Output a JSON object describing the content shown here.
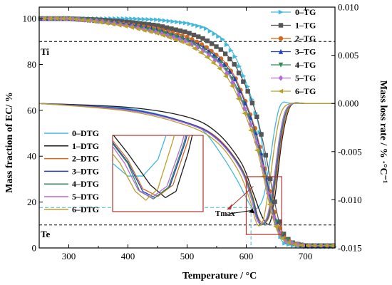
{
  "chart_data": {
    "type": "line",
    "xlabel": "Temperature / °C",
    "ylabel": "Mass fraction of EC/ %",
    "y2label": "Mass loss rate / % ·°C⁻¹",
    "xlim": [
      250,
      750
    ],
    "ylim": [
      0,
      105
    ],
    "y2lim": [
      -0.015,
      0.01
    ],
    "xticks": [
      300,
      400,
      500,
      600,
      700
    ],
    "yticks": [
      0,
      20,
      40,
      60,
      80,
      100
    ],
    "y2ticks": [
      -0.015,
      -0.01,
      -0.005,
      0.0,
      0.005,
      0.01
    ],
    "y2tick_labels": [
      "-0.015",
      "-0.010",
      "-0.005",
      "0.000",
      "0.005",
      "0.010"
    ],
    "grid": false,
    "legend_tg_position": "top-right",
    "legend_dtg_position": "left-center",
    "annotations": {
      "ti": "Ti",
      "te": "Te",
      "tmax": "Tmax",
      "ti_level": 90,
      "te_level": 10,
      "tmax_x": 608
    },
    "series_tg": [
      {
        "name": "0–TG",
        "color": "#42b8dd",
        "marker": "triangle-right",
        "x": [
          250,
          300,
          350,
          400,
          450,
          500,
          530,
          560,
          580,
          600,
          615,
          625,
          635,
          645,
          655,
          665,
          680,
          700,
          750
        ],
        "y": [
          100,
          100,
          100,
          100,
          99.5,
          98,
          96,
          91,
          84,
          72,
          60,
          48,
          33,
          18,
          6,
          2,
          1,
          0.5,
          0.5
        ]
      },
      {
        "name": "1–TG",
        "color": "#555555",
        "marker": "square",
        "x": [
          250,
          300,
          350,
          400,
          450,
          500,
          530,
          560,
          580,
          600,
          615,
          625,
          635,
          645,
          655,
          665,
          680,
          700,
          750
        ],
        "y": [
          100,
          100,
          99.5,
          98.5,
          97,
          94,
          91,
          86,
          80,
          70,
          60,
          50,
          38,
          24,
          12,
          5,
          2,
          1,
          1
        ]
      },
      {
        "name": "2–TG",
        "color": "#d2691e",
        "marker": "circle",
        "x": [
          250,
          300,
          350,
          400,
          450,
          500,
          530,
          560,
          580,
          600,
          615,
          625,
          635,
          645,
          655,
          665,
          680,
          700,
          750
        ],
        "y": [
          100,
          100,
          99,
          97.5,
          95.5,
          92,
          88,
          82,
          75,
          63,
          52,
          42,
          30,
          18,
          9,
          4,
          2,
          1,
          1
        ]
      },
      {
        "name": "3–TG",
        "color": "#1f3fbf",
        "marker": "triangle-up",
        "x": [
          250,
          300,
          350,
          400,
          450,
          500,
          530,
          560,
          580,
          600,
          615,
          625,
          635,
          645,
          655,
          665,
          680,
          700,
          750
        ],
        "y": [
          100,
          100,
          99,
          97.5,
          95,
          91,
          87,
          81,
          74,
          62,
          51,
          41,
          29,
          17,
          8,
          4,
          2,
          1,
          1
        ]
      },
      {
        "name": "4–TG",
        "color": "#2e8b57",
        "marker": "triangle-down",
        "x": [
          250,
          300,
          350,
          400,
          450,
          500,
          530,
          560,
          580,
          600,
          615,
          625,
          635,
          645,
          655,
          665,
          680,
          700,
          750
        ],
        "y": [
          100,
          100,
          99,
          97,
          94.5,
          90.5,
          86,
          80,
          72,
          60,
          49,
          39,
          27,
          16,
          8,
          4,
          2,
          1,
          1
        ]
      },
      {
        "name": "5–TG",
        "color": "#b36ad9",
        "marker": "diamond",
        "x": [
          250,
          300,
          350,
          400,
          450,
          500,
          530,
          560,
          580,
          600,
          615,
          625,
          635,
          645,
          655,
          665,
          680,
          700,
          750
        ],
        "y": [
          100,
          100,
          99,
          97,
          94,
          90,
          85.5,
          79,
          71,
          59,
          48,
          38,
          26,
          15,
          7,
          3,
          2,
          1,
          1
        ]
      },
      {
        "name": "6–TG",
        "color": "#b8a02a",
        "marker": "triangle-left",
        "x": [
          250,
          300,
          350,
          400,
          450,
          500,
          530,
          560,
          580,
          600,
          615,
          625,
          635,
          645,
          655,
          665,
          680,
          700,
          750
        ],
        "y": [
          100,
          100,
          98.5,
          96.5,
          93.5,
          89,
          84,
          77,
          69,
          57,
          46,
          36,
          24,
          13,
          6,
          3,
          1.5,
          1,
          1
        ]
      }
    ],
    "series_dtg": [
      {
        "name": "0–DTG",
        "color": "#42b8dd",
        "x": [
          250,
          400,
          500,
          530,
          560,
          585,
          600,
          610,
          620,
          630,
          640,
          650,
          660,
          680,
          750
        ],
        "y": [
          0.0,
          -0.0005,
          -0.002,
          -0.003,
          -0.0055,
          -0.008,
          -0.0098,
          -0.0108,
          -0.0108,
          -0.0095,
          -0.006,
          -0.002,
          0.0,
          0.0,
          0.0
        ]
      },
      {
        "name": "1–DTG",
        "color": "#1a1a1a",
        "x": [
          250,
          400,
          500,
          550,
          590,
          610,
          625,
          635,
          642,
          650,
          660,
          670,
          680,
          700,
          750
        ],
        "y": [
          0.0,
          -0.0004,
          -0.0014,
          -0.003,
          -0.006,
          -0.009,
          -0.0115,
          -0.0125,
          -0.012,
          -0.009,
          -0.004,
          -0.001,
          0.0,
          0.0,
          0.0
        ]
      },
      {
        "name": "2–DTG",
        "color": "#d2691e",
        "x": [
          250,
          400,
          500,
          550,
          590,
          610,
          620,
          630,
          640,
          650,
          660,
          670,
          680,
          700,
          750
        ],
        "y": [
          0.0,
          -0.0006,
          -0.002,
          -0.0035,
          -0.0065,
          -0.0095,
          -0.0118,
          -0.0124,
          -0.0115,
          -0.008,
          -0.0035,
          -0.0008,
          0.0,
          0.0,
          0.0
        ]
      },
      {
        "name": "3–DTG",
        "color": "#1f3fbf",
        "x": [
          250,
          400,
          500,
          550,
          590,
          610,
          620,
          628,
          638,
          648,
          658,
          668,
          680,
          700,
          750
        ],
        "y": [
          0.0,
          -0.0006,
          -0.002,
          -0.0036,
          -0.0066,
          -0.0097,
          -0.012,
          -0.0125,
          -0.0116,
          -0.0082,
          -0.0036,
          -0.0008,
          0.0,
          0.0,
          0.0
        ]
      },
      {
        "name": "4–DTG",
        "color": "#2e8b57",
        "x": [
          250,
          400,
          500,
          550,
          590,
          610,
          618,
          627,
          637,
          647,
          657,
          667,
          680,
          700,
          750
        ],
        "y": [
          0.0,
          -0.0007,
          -0.0021,
          -0.0037,
          -0.0067,
          -0.0098,
          -0.012,
          -0.0126,
          -0.0117,
          -0.0083,
          -0.0037,
          -0.0009,
          0.0,
          0.0,
          0.0
        ]
      },
      {
        "name": "5–DTG",
        "color": "#b36ad9",
        "x": [
          250,
          400,
          500,
          550,
          590,
          608,
          617,
          626,
          636,
          646,
          656,
          666,
          680,
          700,
          750
        ],
        "y": [
          0.0,
          -0.0007,
          -0.0021,
          -0.0037,
          -0.0068,
          -0.0098,
          -0.0119,
          -0.0125,
          -0.0116,
          -0.0082,
          -0.0036,
          -0.0008,
          0.0,
          0.0,
          0.0
        ]
      },
      {
        "name": "6–DTG",
        "color": "#b8a02a",
        "x": [
          250,
          400,
          500,
          550,
          585,
          605,
          615,
          622,
          630,
          640,
          650,
          660,
          675,
          700,
          750
        ],
        "y": [
          0.0,
          -0.0008,
          -0.0023,
          -0.004,
          -0.0068,
          -0.0098,
          -0.012,
          -0.0127,
          -0.0118,
          -0.008,
          -0.0035,
          -0.0008,
          0.0,
          0.0,
          0.0
        ]
      }
    ]
  }
}
